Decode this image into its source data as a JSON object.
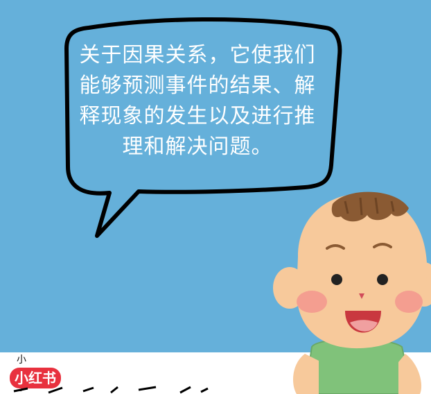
{
  "bubble": {
    "lines": [
      "关于因果关系，它使我们",
      "能够预测事件的结果、解",
      "释现象的发生以及进行推",
      "理和解决问题。"
    ]
  },
  "watermark": {
    "assistant_label": "小助手",
    "logo_text": "小红书"
  },
  "colors": {
    "sky": "#65b0da",
    "bubble_fill": "#65b0da",
    "outline": "#000000",
    "skin": "#f7c99b",
    "hair": "#8a5a33",
    "shirt": "#80c27a",
    "cheek": "#f28b8b",
    "logo": "#e8313e"
  },
  "icons": [
    "speech-bubble-icon",
    "boy-character-illustration"
  ]
}
